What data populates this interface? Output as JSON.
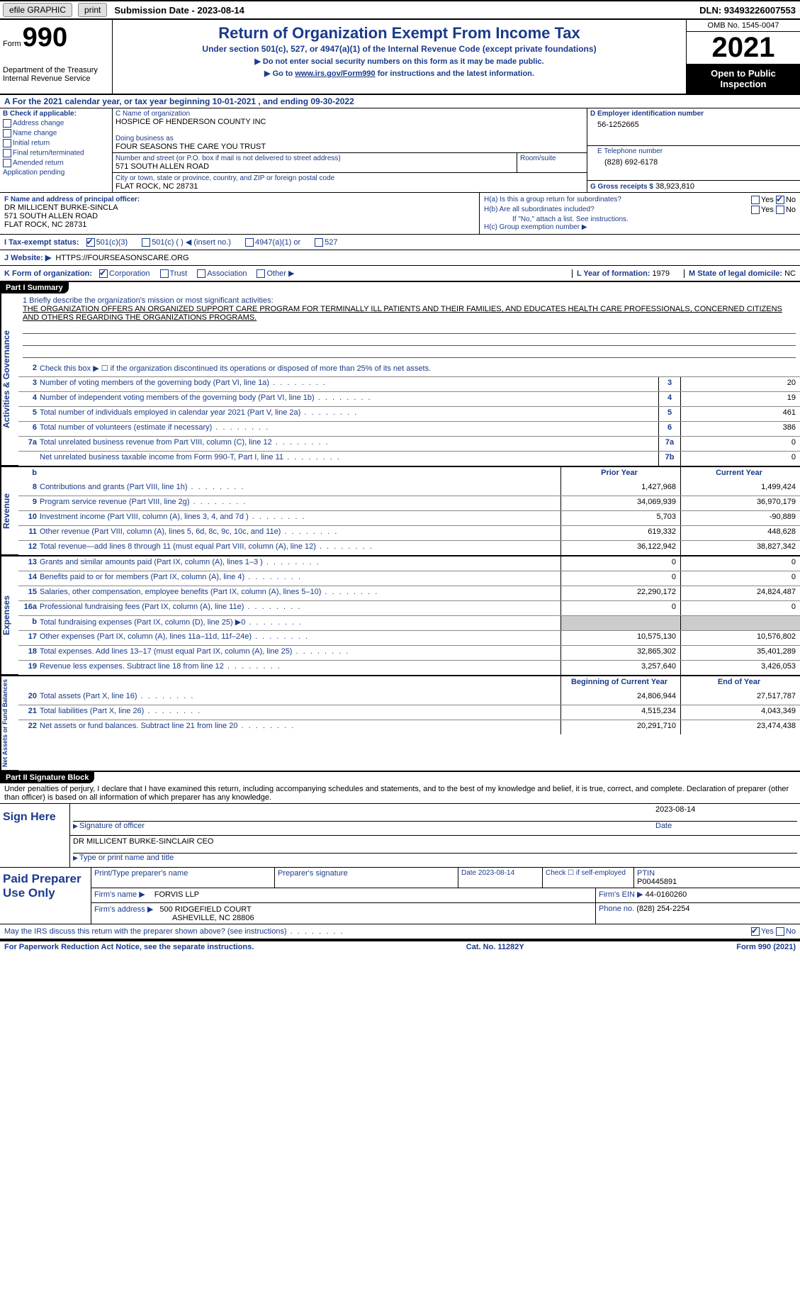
{
  "topbar": {
    "efile": "efile GRAPHIC",
    "print": "print",
    "sub_date_label": "Submission Date - 2023-08-14",
    "dln": "DLN: 93493226007553"
  },
  "header": {
    "form_word": "Form",
    "form_num": "990",
    "dept": "Department of the Treasury Internal Revenue Service",
    "title": "Return of Organization Exempt From Income Tax",
    "subtitle": "Under section 501(c), 527, or 4947(a)(1) of the Internal Revenue Code (except private foundations)",
    "note1": "▶ Do not enter social security numbers on this form as it may be made public.",
    "note2_pre": "▶ Go to ",
    "note2_link": "www.irs.gov/Form990",
    "note2_post": " for instructions and the latest information.",
    "omb": "OMB No. 1545-0047",
    "year": "2021",
    "open": "Open to Public Inspection"
  },
  "cal_year": "A  For the 2021 calendar year, or tax year beginning 10-01-2021    , and ending 09-30-2022",
  "section_b": {
    "label": "B Check if applicable:",
    "items": [
      "Address change",
      "Name change",
      "Initial return",
      "Final return/terminated",
      "Amended return",
      "Application pending"
    ]
  },
  "section_c": {
    "name_label": "C Name of organization",
    "name": "HOSPICE OF HENDERSON COUNTY INC",
    "dba_label": "Doing business as",
    "dba": "FOUR SEASONS THE CARE YOU TRUST",
    "street_label": "Number and street (or P.O. box if mail is not delivered to street address)",
    "street": "571 SOUTH ALLEN ROAD",
    "room_label": "Room/suite",
    "city_label": "City or town, state or province, country, and ZIP or foreign postal code",
    "city": "FLAT ROCK, NC  28731"
  },
  "section_d": {
    "ein_label": "D Employer identification number",
    "ein": "56-1252665",
    "phone_label": "E Telephone number",
    "phone": "(828) 692-6178",
    "gross_label": "G Gross receipts $",
    "gross": "38,923,810"
  },
  "officer": {
    "label": "F  Name and address of principal officer:",
    "name": "DR MILLICENT BURKE-SINCLA",
    "street": "571 SOUTH ALLEN ROAD",
    "city": "FLAT ROCK, NC  28731"
  },
  "section_h": {
    "a": "H(a)   Is this a group return for subordinates?",
    "b": "H(b)   Are all subordinates included?",
    "b_note": "If \"No,\" attach a list. See instructions.",
    "c": "H(c)   Group exemption number ▶"
  },
  "status": {
    "label": "I   Tax-exempt status:",
    "opts": [
      "501(c)(3)",
      "501(c) (  ) ◀ (insert no.)",
      "4947(a)(1) or",
      "527"
    ]
  },
  "website": {
    "label": "J   Website: ▶",
    "val": "HTTPS://FOURSEASONSCARE.ORG"
  },
  "korg": {
    "label": "K Form of organization:",
    "opts": [
      "Corporation",
      "Trust",
      "Association",
      "Other ▶"
    ],
    "l_label": "L Year of formation:",
    "l_val": "1979",
    "m_label": "M State of legal domicile:",
    "m_val": "NC"
  },
  "part1_title": "Part I     Summary",
  "mission": {
    "label": "1   Briefly describe the organization's mission or most significant activities:",
    "text": "THE ORGANIZATION OFFERS AN ORGANIZED SUPPORT CARE PROGRAM FOR TERMINALLY ILL PATIENTS AND THEIR FAMILIES, AND EDUCATES HEALTH CARE PROFESSIONALS, CONCERNED CITIZENS AND OTHERS REGARDING THE ORGANIZATIONS PROGRAMS."
  },
  "gov_lines": [
    {
      "n": "2",
      "d": "Check this box ▶ ☐  if the organization discontinued its operations or disposed of more than 25% of its net assets.",
      "nc": "",
      "v": ""
    },
    {
      "n": "3",
      "d": "Number of voting members of the governing body (Part VI, line 1a)",
      "nc": "3",
      "v": "20"
    },
    {
      "n": "4",
      "d": "Number of independent voting members of the governing body (Part VI, line 1b)",
      "nc": "4",
      "v": "19"
    },
    {
      "n": "5",
      "d": "Total number of individuals employed in calendar year 2021 (Part V, line 2a)",
      "nc": "5",
      "v": "461"
    },
    {
      "n": "6",
      "d": "Total number of volunteers (estimate if necessary)",
      "nc": "6",
      "v": "386"
    },
    {
      "n": "7a",
      "d": "Total unrelated business revenue from Part VIII, column (C), line 12",
      "nc": "7a",
      "v": "0"
    },
    {
      "n": "",
      "d": "Net unrelated business taxable income from Form 990-T, Part I, line 11",
      "nc": "7b",
      "v": "0"
    }
  ],
  "rev_hdr": {
    "py": "Prior Year",
    "cy": "Current Year"
  },
  "rev_lines": [
    {
      "n": "8",
      "d": "Contributions and grants (Part VIII, line 1h)",
      "py": "1,427,968",
      "cy": "1,499,424"
    },
    {
      "n": "9",
      "d": "Program service revenue (Part VIII, line 2g)",
      "py": "34,069,939",
      "cy": "36,970,179"
    },
    {
      "n": "10",
      "d": "Investment income (Part VIII, column (A), lines 3, 4, and 7d )",
      "py": "5,703",
      "cy": "-90,889"
    },
    {
      "n": "11",
      "d": "Other revenue (Part VIII, column (A), lines 5, 6d, 8c, 9c, 10c, and 11e)",
      "py": "619,332",
      "cy": "448,628"
    },
    {
      "n": "12",
      "d": "Total revenue—add lines 8 through 11 (must equal Part VIII, column (A), line 12)",
      "py": "36,122,942",
      "cy": "38,827,342"
    }
  ],
  "exp_lines": [
    {
      "n": "13",
      "d": "Grants and similar amounts paid (Part IX, column (A), lines 1–3 )",
      "py": "0",
      "cy": "0"
    },
    {
      "n": "14",
      "d": "Benefits paid to or for members (Part IX, column (A), line 4)",
      "py": "0",
      "cy": "0"
    },
    {
      "n": "15",
      "d": "Salaries, other compensation, employee benefits (Part IX, column (A), lines 5–10)",
      "py": "22,290,172",
      "cy": "24,824,487"
    },
    {
      "n": "16a",
      "d": "Professional fundraising fees (Part IX, column (A), line 11e)",
      "py": "0",
      "cy": "0"
    },
    {
      "n": "b",
      "d": "Total fundraising expenses (Part IX, column (D), line 25) ▶0",
      "py": "shade",
      "cy": "shade"
    },
    {
      "n": "17",
      "d": "Other expenses (Part IX, column (A), lines 11a–11d, 11f–24e)",
      "py": "10,575,130",
      "cy": "10,576,802"
    },
    {
      "n": "18",
      "d": "Total expenses. Add lines 13–17 (must equal Part IX, column (A), line 25)",
      "py": "32,865,302",
      "cy": "35,401,289"
    },
    {
      "n": "19",
      "d": "Revenue less expenses. Subtract line 18 from line 12",
      "py": "3,257,640",
      "cy": "3,426,053"
    }
  ],
  "net_hdr": {
    "py": "Beginning of Current Year",
    "cy": "End of Year"
  },
  "net_lines": [
    {
      "n": "20",
      "d": "Total assets (Part X, line 16)",
      "py": "24,806,944",
      "cy": "27,517,787"
    },
    {
      "n": "21",
      "d": "Total liabilities (Part X, line 26)",
      "py": "4,515,234",
      "cy": "4,043,349"
    },
    {
      "n": "22",
      "d": "Net assets or fund balances. Subtract line 21 from line 20",
      "py": "20,291,710",
      "cy": "23,474,438"
    }
  ],
  "part2_title": "Part II    Signature Block",
  "sig_decl": "Under penalties of perjury, I declare that I have examined this return, including accompanying schedules and statements, and to the best of my knowledge and belief, it is true, correct, and complete. Declaration of preparer (other than officer) is based on all information of which preparer has any knowledge.",
  "sign": {
    "here": "Sign Here",
    "sig_label": "Signature of officer",
    "date_label": "Date",
    "date": "2023-08-14",
    "name": "DR MILLICENT BURKE-SINCLAIR CEO",
    "name_label": "Type or print name and title"
  },
  "prep": {
    "title": "Paid Preparer Use Only",
    "h1": "Print/Type preparer's name",
    "h2": "Preparer's signature",
    "h3": "Date 2023-08-14",
    "h4": "Check ☐ if self-employed",
    "h5_label": "PTIN",
    "h5": "P00445891",
    "firm_label": "Firm's name    ▶",
    "firm": "FORVIS LLP",
    "ein_label": "Firm's EIN ▶",
    "ein": "44-0160260",
    "addr_label": "Firm's address ▶",
    "addr1": "500 RIDGEFIELD COURT",
    "addr2": "ASHEVILLE, NC  28806",
    "phone_label": "Phone no.",
    "phone": "(828) 254-2254"
  },
  "may_irs": "May the IRS discuss this return with the preparer shown above? (see instructions)",
  "footer": {
    "left": "For Paperwork Reduction Act Notice, see the separate instructions.",
    "mid": "Cat. No. 11282Y",
    "right": "Form 990 (2021)"
  },
  "side_labels": {
    "gov": "Activities & Governance",
    "rev": "Revenue",
    "exp": "Expenses",
    "net": "Net Assets or Fund Balances"
  }
}
